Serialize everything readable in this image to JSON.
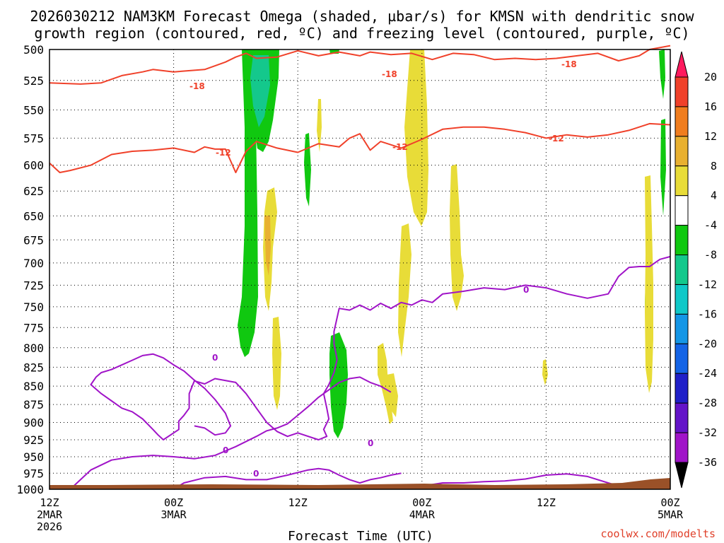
{
  "page": {
    "title_line1": "2026030212 NAM3KM Forecast Omega (shaded, µbar/s) for KMSN with dendritic snow",
    "title_line2": "growth region (contoured, red, ºC) and freezing level (contoured, purple, ºC)",
    "credit": "coolwx.com/modelts"
  },
  "chart_data": {
    "type": "time-height",
    "xlabel": "Forecast Time (UTC)",
    "ylabel": "",
    "x_ticks": [
      {
        "hour": 0,
        "lines": [
          "12Z",
          "2MAR",
          "2026"
        ]
      },
      {
        "hour": 12,
        "lines": [
          "00Z",
          "3MAR"
        ]
      },
      {
        "hour": 24,
        "lines": [
          "12Z"
        ]
      },
      {
        "hour": 36,
        "lines": [
          "00Z",
          "4MAR"
        ]
      },
      {
        "hour": 48,
        "lines": [
          "12Z"
        ]
      },
      {
        "hour": 60,
        "lines": [
          "00Z",
          "5MAR"
        ]
      }
    ],
    "xlim": [
      0,
      60
    ],
    "y_levels": [
      500,
      525,
      550,
      575,
      600,
      625,
      650,
      675,
      700,
      725,
      750,
      775,
      800,
      825,
      850,
      875,
      900,
      925,
      950,
      975,
      1000
    ],
    "ylim": [
      500,
      1000
    ],
    "y_scale": "log-pressure",
    "grid": true,
    "colorbar": {
      "labels": [
        "20",
        "16",
        "12",
        "8",
        "4",
        "-4",
        "-8",
        "-12",
        "-16",
        "-20",
        "-24",
        "-28",
        "-32",
        "-36"
      ],
      "colors": [
        "#ff1a5e",
        "#f0412a",
        "#f07d1e",
        "#e8b030",
        "#e8dc38",
        "#ffffff",
        "#10c810",
        "#14c88c",
        "#10c8c8",
        "#1496e6",
        "#1464e6",
        "#2020c8",
        "#6414c8",
        "#a014c8",
        "#a8a8a8"
      ],
      "extends": "both"
    },
    "contour_labels": {
      "red": [
        "-18",
        "-18",
        "-18",
        "-12",
        "-12",
        "-12"
      ],
      "purple": [
        "0",
        "0",
        "0",
        "0",
        "0"
      ]
    },
    "series": [
      {
        "kind": "red",
        "value": -18,
        "points": [
          [
            0,
            527
          ],
          [
            3,
            528
          ],
          [
            5,
            527
          ],
          [
            7,
            521
          ],
          [
            9,
            518
          ],
          [
            10,
            516
          ],
          [
            12,
            518
          ],
          [
            15,
            516
          ],
          [
            17,
            510
          ],
          [
            18,
            506
          ],
          [
            19,
            503
          ],
          [
            20,
            507
          ],
          [
            22,
            506
          ],
          [
            24,
            501
          ],
          [
            26,
            505
          ],
          [
            28,
            502
          ],
          [
            30,
            505
          ],
          [
            31,
            502
          ],
          [
            33,
            504
          ],
          [
            35,
            503
          ],
          [
            37,
            508
          ],
          [
            39,
            503
          ],
          [
            41,
            504
          ],
          [
            43,
            508
          ],
          [
            45,
            507
          ],
          [
            47,
            508
          ],
          [
            49,
            507
          ],
          [
            51,
            505
          ],
          [
            53,
            503
          ],
          [
            55,
            509
          ],
          [
            57,
            505
          ],
          [
            58,
            500
          ],
          [
            60,
            497
          ]
        ]
      },
      {
        "kind": "red",
        "value": -12,
        "points": [
          [
            0,
            598
          ],
          [
            1,
            607
          ],
          [
            2,
            605
          ],
          [
            4,
            600
          ],
          [
            6,
            590
          ],
          [
            8,
            587
          ],
          [
            10,
            586
          ],
          [
            12,
            584
          ],
          [
            14,
            588
          ],
          [
            15,
            583
          ],
          [
            16,
            585
          ],
          [
            17,
            585
          ],
          [
            18,
            607
          ],
          [
            19,
            587
          ],
          [
            20,
            578
          ],
          [
            22,
            584
          ],
          [
            24,
            588
          ],
          [
            26,
            580
          ],
          [
            28,
            583
          ],
          [
            29,
            575
          ],
          [
            30,
            571
          ],
          [
            31,
            586
          ],
          [
            32,
            578
          ],
          [
            34,
            584
          ],
          [
            36,
            576
          ],
          [
            38,
            567
          ],
          [
            40,
            565
          ],
          [
            42,
            565
          ],
          [
            44,
            567
          ],
          [
            46,
            570
          ],
          [
            48,
            575
          ],
          [
            50,
            572
          ],
          [
            52,
            574
          ],
          [
            54,
            572
          ],
          [
            56,
            568
          ],
          [
            58,
            562
          ],
          [
            60,
            563
          ]
        ]
      },
      {
        "kind": "purple",
        "value": 0,
        "points": [
          [
            60,
            693
          ],
          [
            59,
            696
          ],
          [
            58,
            704
          ],
          [
            57,
            704
          ],
          [
            56,
            705
          ],
          [
            55,
            715
          ],
          [
            54,
            735
          ],
          [
            52,
            740
          ],
          [
            50,
            735
          ],
          [
            48,
            728
          ],
          [
            46,
            725
          ],
          [
            44,
            730
          ],
          [
            42,
            728
          ],
          [
            40,
            732
          ],
          [
            38,
            735
          ],
          [
            37,
            745
          ],
          [
            36,
            742
          ],
          [
            35,
            748
          ],
          [
            34,
            745
          ],
          [
            33,
            752
          ],
          [
            32,
            746
          ],
          [
            31,
            754
          ],
          [
            30,
            748
          ],
          [
            29,
            754
          ],
          [
            28,
            752
          ],
          [
            27.5,
            780
          ],
          [
            27.5,
            795
          ],
          [
            27.8,
            815
          ],
          [
            27.5,
            832
          ],
          [
            27,
            848
          ],
          [
            26.5,
            860
          ],
          [
            26.8,
            880
          ],
          [
            27,
            895
          ],
          [
            26.5,
            910
          ],
          [
            26.8,
            920
          ],
          [
            26,
            925
          ],
          [
            24,
            915
          ],
          [
            23,
            920
          ],
          [
            22,
            913
          ],
          [
            21,
            900
          ],
          [
            20,
            880
          ],
          [
            19,
            860
          ],
          [
            18,
            845
          ],
          [
            16,
            840
          ],
          [
            15,
            847
          ],
          [
            14,
            843
          ],
          [
            13.5,
            860
          ],
          [
            13.5,
            880
          ],
          [
            13,
            890
          ],
          [
            12.5,
            898
          ],
          [
            12.5,
            910
          ],
          [
            11,
            925
          ],
          [
            10.5,
            918
          ],
          [
            10,
            910
          ],
          [
            9,
            895
          ],
          [
            8,
            885
          ],
          [
            7,
            880
          ],
          [
            6,
            870
          ],
          [
            5,
            860
          ],
          [
            4,
            848
          ],
          [
            4.5,
            838
          ],
          [
            5,
            832
          ],
          [
            6,
            828
          ],
          [
            7,
            822
          ],
          [
            8,
            816
          ],
          [
            9,
            810
          ],
          [
            10,
            808
          ],
          [
            11,
            813
          ],
          [
            12,
            822
          ],
          [
            13,
            830
          ],
          [
            14,
            842
          ],
          [
            15,
            853
          ],
          [
            16,
            868
          ],
          [
            17,
            887
          ],
          [
            17.5,
            905
          ],
          [
            17,
            915
          ],
          [
            16,
            918
          ],
          [
            15,
            908
          ],
          [
            14,
            905
          ]
        ]
      },
      {
        "kind": "purple",
        "value": 0,
        "points": [
          [
            2,
            1000
          ],
          [
            3,
            985
          ],
          [
            4,
            970
          ],
          [
            6,
            955
          ],
          [
            8,
            950
          ],
          [
            10,
            948
          ],
          [
            12,
            950
          ],
          [
            14,
            953
          ],
          [
            16,
            948
          ],
          [
            18,
            935
          ],
          [
            20,
            920
          ],
          [
            21,
            912
          ],
          [
            22,
            908
          ],
          [
            23,
            902
          ],
          [
            24,
            890
          ],
          [
            25,
            878
          ],
          [
            26,
            865
          ],
          [
            27,
            855
          ],
          [
            28,
            845
          ],
          [
            29,
            840
          ],
          [
            30,
            838
          ],
          [
            31,
            845
          ],
          [
            32,
            850
          ],
          [
            33,
            858
          ]
        ]
      },
      {
        "kind": "purple",
        "value": 0,
        "points": [
          [
            12,
            1000
          ],
          [
            13,
            990
          ],
          [
            15,
            982
          ],
          [
            17,
            980
          ],
          [
            19,
            985
          ],
          [
            21,
            985
          ],
          [
            23,
            978
          ],
          [
            25,
            970
          ],
          [
            26,
            968
          ],
          [
            27,
            970
          ],
          [
            28,
            978
          ],
          [
            29,
            985
          ],
          [
            30,
            990
          ],
          [
            31,
            985
          ],
          [
            32,
            982
          ],
          [
            33,
            978
          ],
          [
            34,
            975
          ]
        ]
      },
      {
        "kind": "purple",
        "value": 0,
        "points": [
          [
            36,
            995
          ],
          [
            38,
            990
          ],
          [
            40,
            990
          ],
          [
            42,
            988
          ],
          [
            44,
            987
          ],
          [
            46,
            984
          ],
          [
            48,
            978
          ],
          [
            50,
            976
          ],
          [
            52,
            980
          ],
          [
            54,
            990
          ],
          [
            55,
            995
          ]
        ]
      }
    ]
  }
}
